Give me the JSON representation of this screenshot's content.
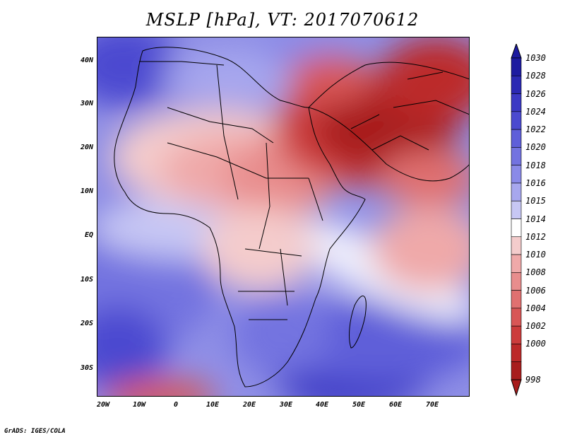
{
  "title": "MSLP [hPa], VT: 2017070612",
  "footer": "GrADS: IGES/COLA",
  "lat_labels": [
    "40N",
    "30N",
    "20N",
    "10N",
    "EQ",
    "10S",
    "20S",
    "30S"
  ],
  "lon_labels": [
    "20W",
    "10W",
    "0",
    "10E",
    "20E",
    "30E",
    "40E",
    "50E",
    "60E",
    "70E"
  ],
  "colorbar": {
    "levels": [
      "1030",
      "1028",
      "1026",
      "1024",
      "1022",
      "1020",
      "1018",
      "1016",
      "1015",
      "1014",
      "1012",
      "1010",
      "1008",
      "1006",
      "1004",
      "1002",
      "1000",
      "998"
    ],
    "colors": [
      "#1d1ba0",
      "#2b29b3",
      "#3b39c4",
      "#4b4ad0",
      "#5f5fd9",
      "#7373e0",
      "#8a8ae8",
      "#a7a7ee",
      "#c7c7f4",
      "#ffffff",
      "#f4cccc",
      "#efa9a9",
      "#e88d8d",
      "#e07070",
      "#d85656",
      "#cc3c3c",
      "#bc2929",
      "#a81d1d"
    ]
  },
  "map": {
    "lon_range": [
      -22,
      80
    ],
    "lat_range": [
      -37,
      45
    ],
    "low_center_color": "#a61b1b",
    "high_center_color": "#1d1ba0"
  }
}
